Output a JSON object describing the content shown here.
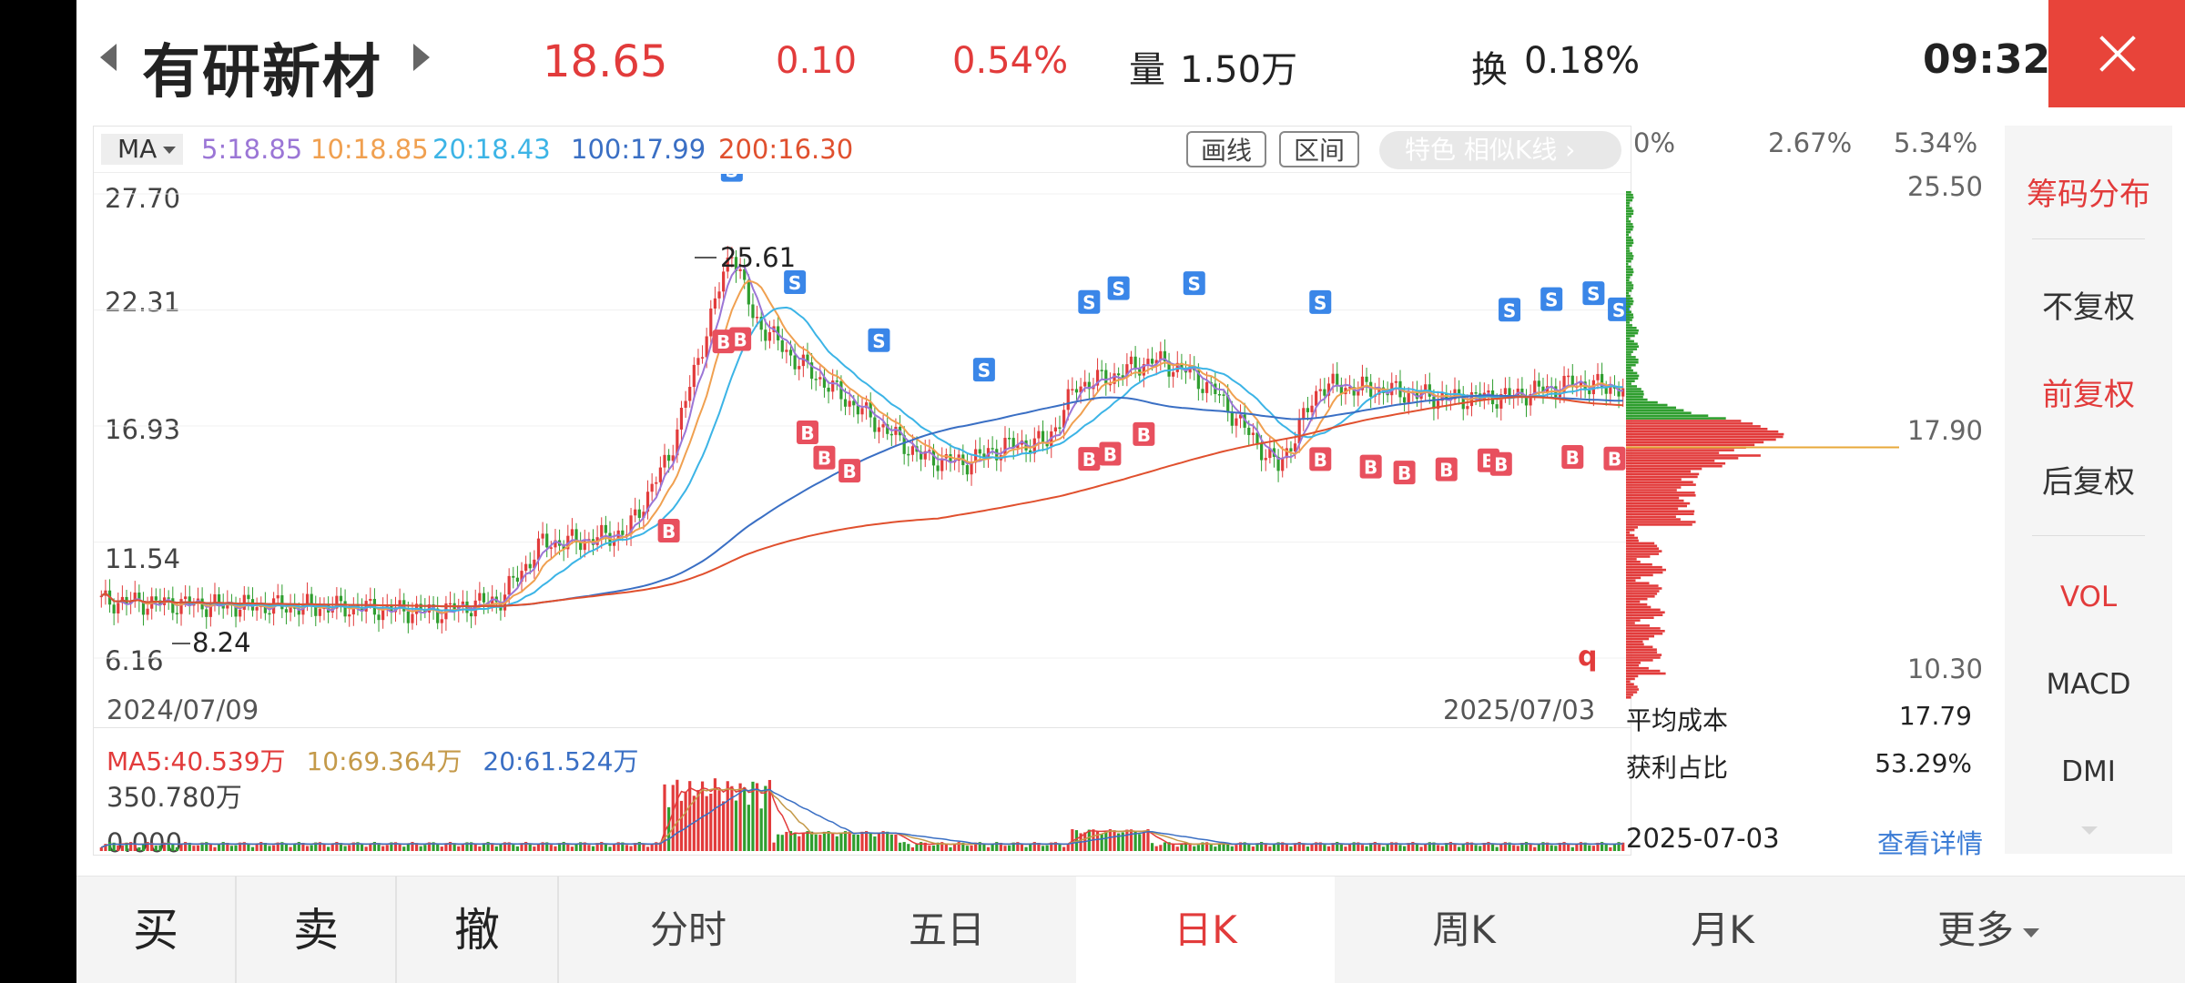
{
  "header": {
    "stock_name": "有研新材",
    "price": "18.65",
    "change": "0.10",
    "change_pct": "0.54%",
    "volume_label": "量",
    "volume_value": "1.50万",
    "turnover_label": "换",
    "turnover_value": "0.18%",
    "time": "09:32"
  },
  "ma_bar": {
    "selector": "MA",
    "ma5": "5:18.85",
    "ma10": "10:18.85",
    "ma20": "20:18.43",
    "ma100": "100:17.99",
    "ma200": "200:16.30",
    "draw_line": "画线",
    "range": "区间",
    "feature": "特色  相似K线 ›"
  },
  "chart_data": {
    "type": "candlestick",
    "price_axis": [
      "27.70",
      "22.31",
      "16.93",
      "11.54",
      "6.16"
    ],
    "ylim": [
      6.16,
      27.7
    ],
    "start_date": "2024/07/09",
    "end_date": "2025/07/03",
    "annotations": {
      "high": "25.61",
      "low": "8.24",
      "marker": "q"
    },
    "ma_series": [
      {
        "name": "MA5",
        "last": 18.85,
        "color": "#9b76d6"
      },
      {
        "name": "MA10",
        "last": 18.85,
        "color": "#f0a050"
      },
      {
        "name": "MA20",
        "last": 18.43,
        "color": "#3cb4e6"
      },
      {
        "name": "MA100",
        "last": 17.99,
        "color": "#3a6fc4"
      },
      {
        "name": "MA200",
        "last": 16.3,
        "color": "#e0502e"
      }
    ],
    "volume": {
      "ma5": "MA5:40.539万",
      "ma10": "10:69.364万",
      "ma20": "20:61.524万",
      "max": "350.780万",
      "zero": "0.000"
    }
  },
  "chips": {
    "pct_axis": [
      "0%",
      "2.67%",
      "5.34%"
    ],
    "price_top": "25.50",
    "price_mid": "17.90",
    "price_bottom": "10.30",
    "avg_cost_label": "平均成本",
    "avg_cost": "17.79",
    "profit_label": "获利占比",
    "profit": "53.29%",
    "date": "2025-07-03",
    "detail_link": "查看详情"
  },
  "side_panel": {
    "chips": "筹码分布",
    "no_adjust": "不复权",
    "fwd_adjust": "前复权",
    "back_adjust": "后复权",
    "vol": "VOL",
    "macd": "MACD",
    "dmi": "DMI"
  },
  "tabs": {
    "buy": "买",
    "sell": "卖",
    "cancel": "撤",
    "intraday": "分时",
    "five_day": "五日",
    "daily": "日K",
    "weekly": "周K",
    "monthly": "月K",
    "more": "更多"
  }
}
